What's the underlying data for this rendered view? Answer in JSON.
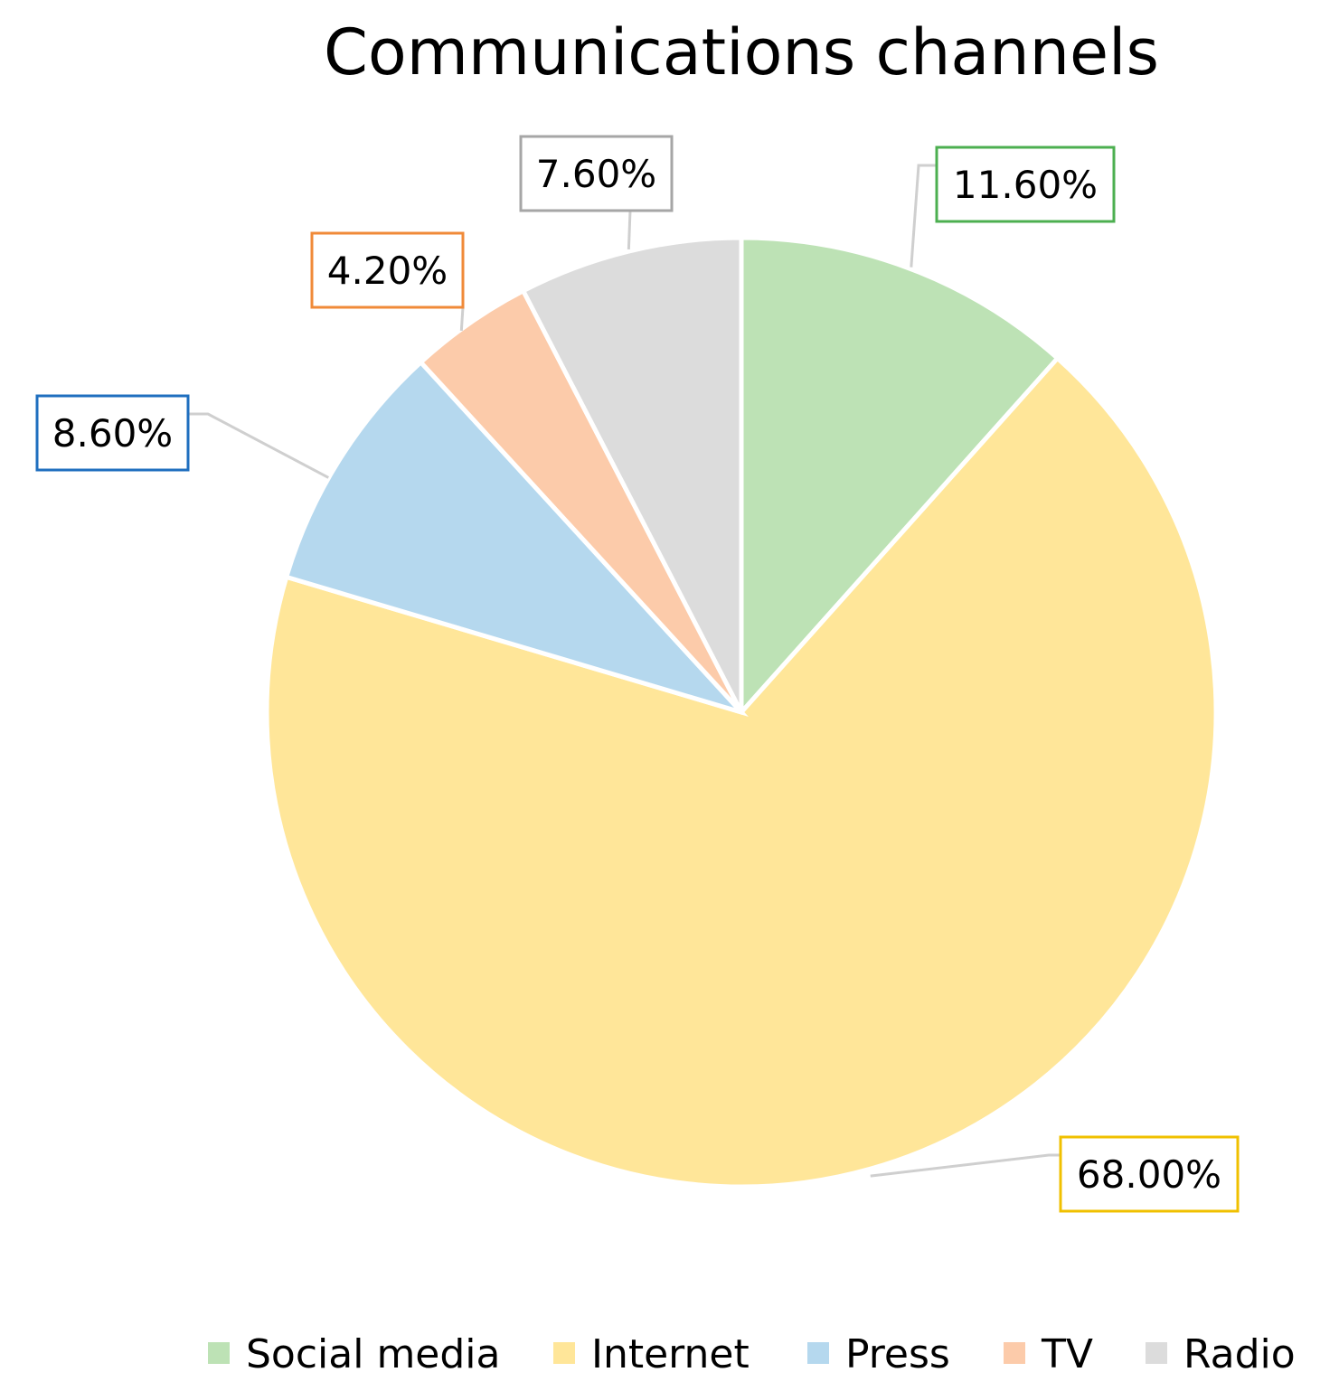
{
  "chart_data": {
    "type": "pie",
    "title": "Communications channels",
    "slices": [
      {
        "label": "Social media",
        "value": 11.6,
        "display": "11.60%",
        "color": "#BDE2B5",
        "border_color": "#4CAF50"
      },
      {
        "label": "Internet",
        "value": 68.0,
        "display": "68.00%",
        "color": "#FFE699",
        "border_color": "#F0C000"
      },
      {
        "label": "Press",
        "value": 8.6,
        "display": "8.60%",
        "color": "#B5D8EE",
        "border_color": "#1F6FBF"
      },
      {
        "label": "TV",
        "value": 4.2,
        "display": "4.20%",
        "color": "#FCCBAA",
        "border_color": "#F08A38"
      },
      {
        "label": "Radio",
        "value": 7.6,
        "display": "7.60%",
        "color": "#DCDCDC",
        "border_color": "#A6A6A6"
      }
    ],
    "legend": {
      "position": "bottom"
    }
  }
}
